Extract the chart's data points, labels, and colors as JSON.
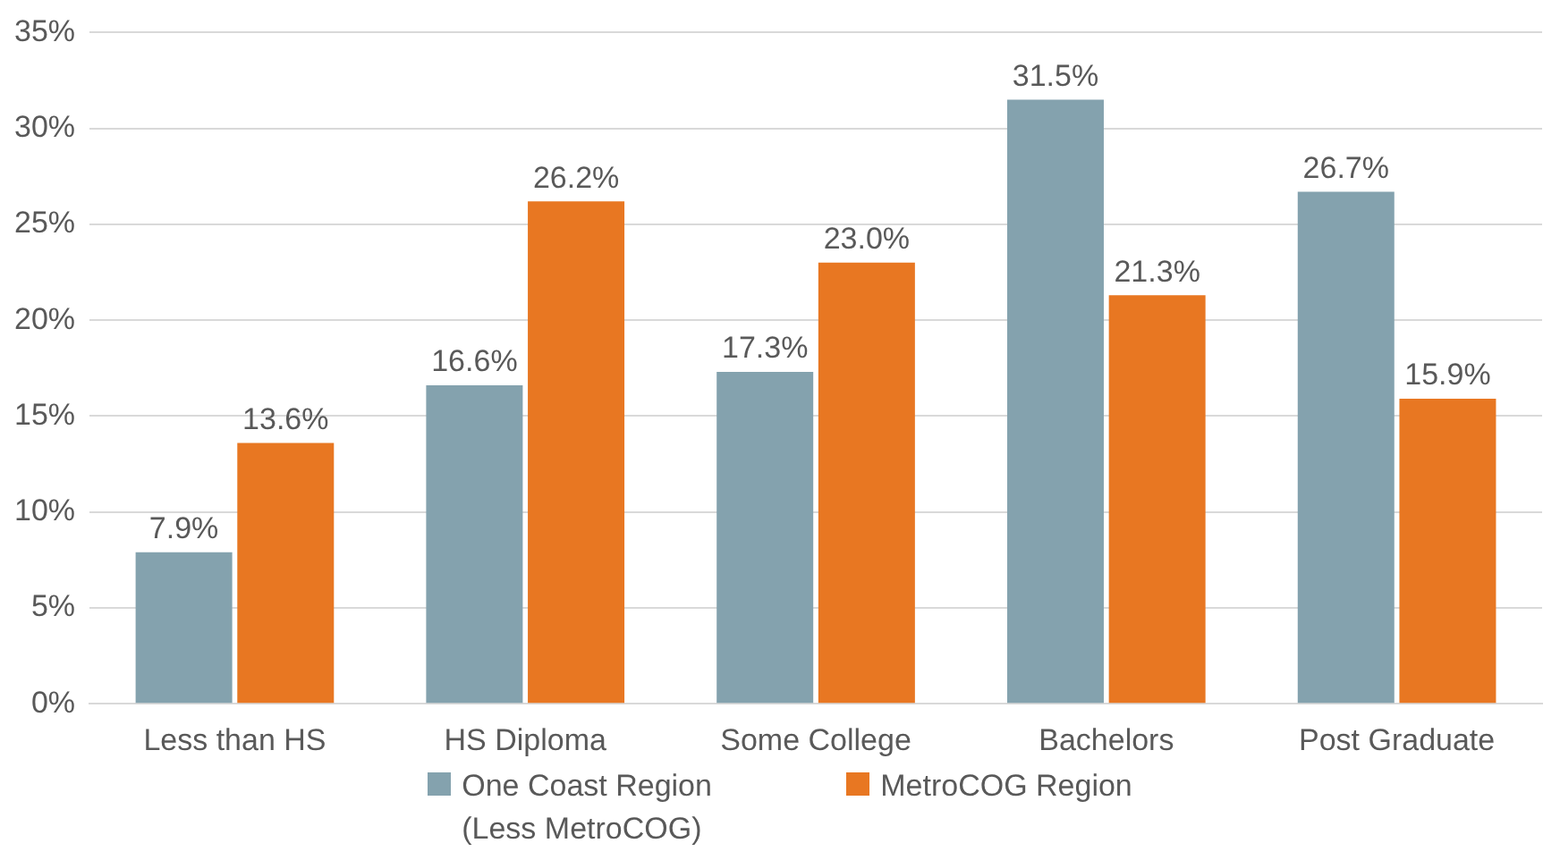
{
  "chart_data": {
    "type": "bar",
    "categories": [
      "Less than HS",
      "HS Diploma",
      "Some College",
      "Bachelors",
      "Post Graduate"
    ],
    "series": [
      {
        "name": "One Coast Region (Less MetroCOG)",
        "color": "#84a2ae",
        "values": [
          7.9,
          16.6,
          17.3,
          31.5,
          26.7
        ],
        "value_labels": [
          "7.9%",
          "16.6%",
          "17.3%",
          "31.5%",
          "26.7%"
        ]
      },
      {
        "name": "MetroCOG Region",
        "color": "#e87722",
        "values": [
          13.6,
          26.2,
          23.0,
          21.3,
          15.9
        ],
        "value_labels": [
          "13.6%",
          "26.2%",
          "23.0%",
          "21.3%",
          "15.9%"
        ]
      }
    ],
    "ylim": [
      0,
      35
    ],
    "yticks": [
      {
        "value": 0,
        "label": "0%"
      },
      {
        "value": 5,
        "label": "5%"
      },
      {
        "value": 10,
        "label": "10%"
      },
      {
        "value": 15,
        "label": "15%"
      },
      {
        "value": 20,
        "label": "20%"
      },
      {
        "value": 25,
        "label": "25%"
      },
      {
        "value": 30,
        "label": "30%"
      },
      {
        "value": 35,
        "label": "35%"
      }
    ],
    "grid": "y",
    "legend": "bottom"
  }
}
